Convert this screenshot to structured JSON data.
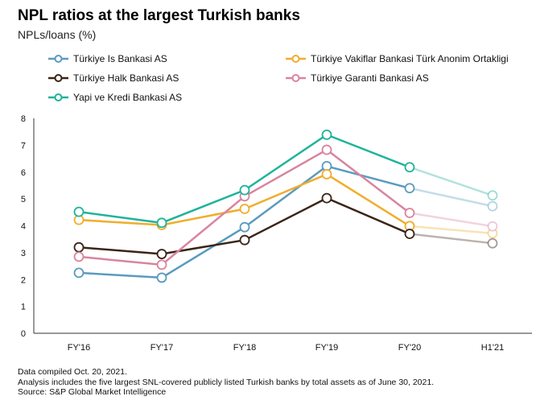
{
  "header": {
    "title": "NPL ratios at the largest Turkish banks",
    "subtitle": "NPLs/loans (%)"
  },
  "footnotes": [
    "Data compiled Oct. 20, 2021.",
    "Analysis includes the five largest SNL-covered publicly listed Turkish banks by total assets as of June 30, 2021.",
    "Source: S&P Global Market Intelligence"
  ],
  "chart_data": {
    "type": "line",
    "title": "NPL ratios at the largest Turkish banks",
    "subtitle": "NPLs/loans (%)",
    "xlabel": "",
    "ylabel": "",
    "categories": [
      "FY'16",
      "FY'17",
      "FY'18",
      "FY'19",
      "FY'20",
      "H1'21"
    ],
    "ylim": [
      0,
      8
    ],
    "yticks": [
      "0",
      "1",
      "2",
      "3",
      "4",
      "5",
      "6",
      "7",
      "8"
    ],
    "grid": false,
    "legend_position": "top",
    "last_segment_faded": true,
    "series": [
      {
        "name": "Türkiye Is Bankasi AS",
        "color": "#5a9bbf",
        "values": [
          2.25,
          2.07,
          3.95,
          6.22,
          5.4,
          4.73
        ]
      },
      {
        "name": "Türkiye Vakiflar Bankasi Türk Anonim Ortakligi",
        "color": "#f0ad2c",
        "values": [
          4.22,
          4.03,
          4.63,
          5.92,
          3.99,
          3.72
        ]
      },
      {
        "name": "Türkiye Halk Bankasi AS",
        "color": "#3b2417",
        "values": [
          3.2,
          2.95,
          3.47,
          5.03,
          3.7,
          3.35
        ]
      },
      {
        "name": "Türkiye Garanti Bankasi AS",
        "color": "#d9849f",
        "values": [
          2.85,
          2.55,
          5.1,
          6.83,
          4.48,
          3.98
        ]
      },
      {
        "name": "Yapi ve Kredi Bankasi AS",
        "color": "#1fb39b",
        "values": [
          4.52,
          4.11,
          5.33,
          7.39,
          6.18,
          5.13
        ]
      }
    ]
  }
}
